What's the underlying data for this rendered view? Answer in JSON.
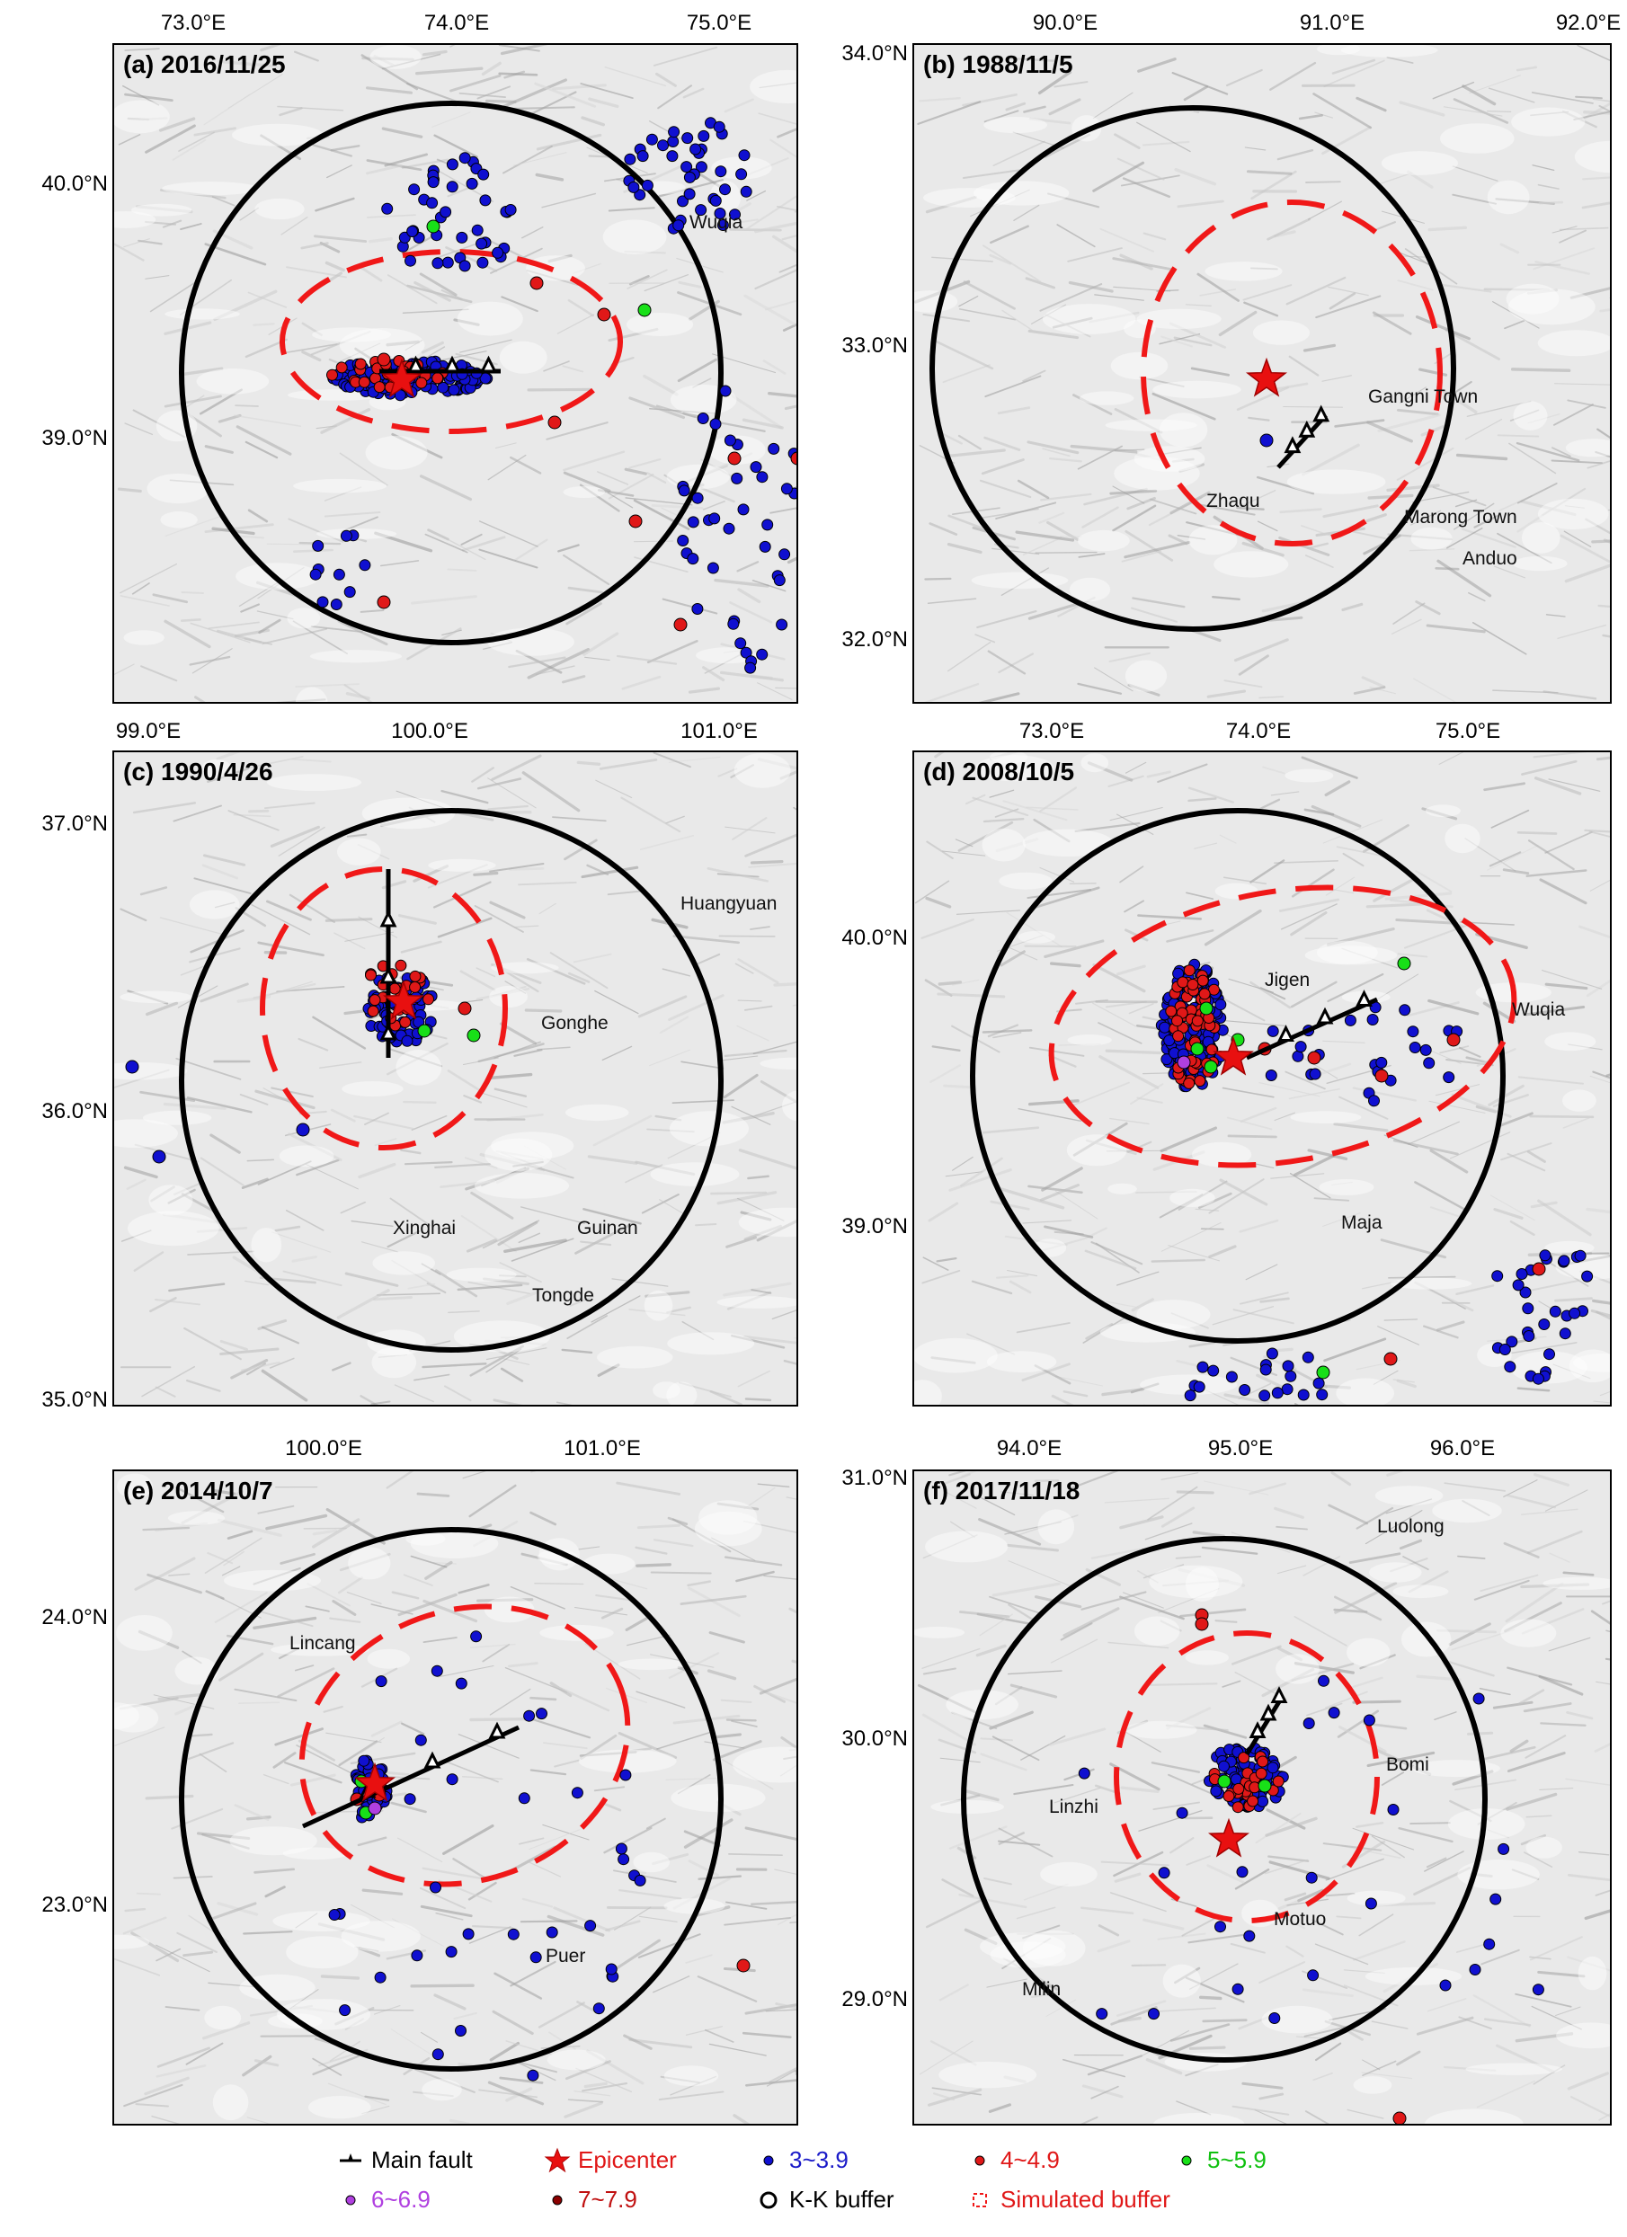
{
  "panels": [
    {
      "id": "a",
      "title": "(a) 2016/11/25",
      "lon_ticks": [
        "73.0°E",
        "74.0°E",
        "75.0°E"
      ],
      "lat_ticks": [
        "40.0°N",
        "39.0°N"
      ],
      "places": [
        "Wuqia"
      ],
      "fault": true
    },
    {
      "id": "b",
      "title": "(b) 1988/11/5",
      "lon_ticks": [
        "90.0°E",
        "91.0°E",
        "92.0°E"
      ],
      "lat_ticks": [
        "34.0°N",
        "33.0°N",
        "32.0°N"
      ],
      "places": [
        "Gangni Town",
        "Zhaqu",
        "Marong Town",
        "Anduo"
      ],
      "fault": true
    },
    {
      "id": "c",
      "title": "(c) 1990/4/26",
      "lon_ticks": [
        "99.0°E",
        "100.0°E",
        "101.0°E"
      ],
      "lat_ticks": [
        "37.0°N",
        "36.0°N",
        "35.0°N"
      ],
      "places": [
        "Huangyuan",
        "Gonghe",
        "Xinghai",
        "Guinan",
        "Tongde"
      ],
      "fault": true
    },
    {
      "id": "d",
      "title": "(d) 2008/10/5",
      "lon_ticks": [
        "73.0°E",
        "74.0°E",
        "75.0°E"
      ],
      "lat_ticks": [
        "40.0°N",
        "39.0°N"
      ],
      "places": [
        "Jigen",
        "Wuqia",
        "Maja"
      ],
      "fault": true
    },
    {
      "id": "e",
      "title": "(e) 2014/10/7",
      "lon_ticks": [
        "100.0°E",
        "101.0°E"
      ],
      "lat_ticks": [
        "24.0°N",
        "23.0°N"
      ],
      "places": [
        "Lincang",
        "Puer"
      ],
      "fault": true
    },
    {
      "id": "f",
      "title": "(f) 2017/11/18",
      "lon_ticks": [
        "94.0°E",
        "95.0°E",
        "96.0°E"
      ],
      "lat_ticks": [
        "31.0°N",
        "30.0°N",
        "29.0°N"
      ],
      "places": [
        "Luolong",
        "Bomi",
        "Linzhi",
        "Motuo",
        "Milin"
      ],
      "fault": true
    }
  ],
  "legend": {
    "main_fault": "Main fault",
    "epicenter": "Epicenter",
    "m3": "3~3.9",
    "m4": "4~4.9",
    "m5": "5~5.9",
    "m6": "6~6.9",
    "m7": "7~7.9",
    "kk_buffer": "K-K buffer",
    "sim_buffer": "Simulated buffer"
  },
  "colors": {
    "m3": "#1010d0",
    "m4": "#e01818",
    "m5": "#18e018",
    "m6": "#b040e0",
    "m7": "#8b0000",
    "epicenter": "#e81010",
    "kk_buffer": "#000000",
    "sim_buffer": "#f01818",
    "m3_label": "#1a1ac8",
    "m4_label": "#e01818",
    "m5_label": "#10c010",
    "m6_label": "#b040e0",
    "m7_label": "#c01010"
  }
}
